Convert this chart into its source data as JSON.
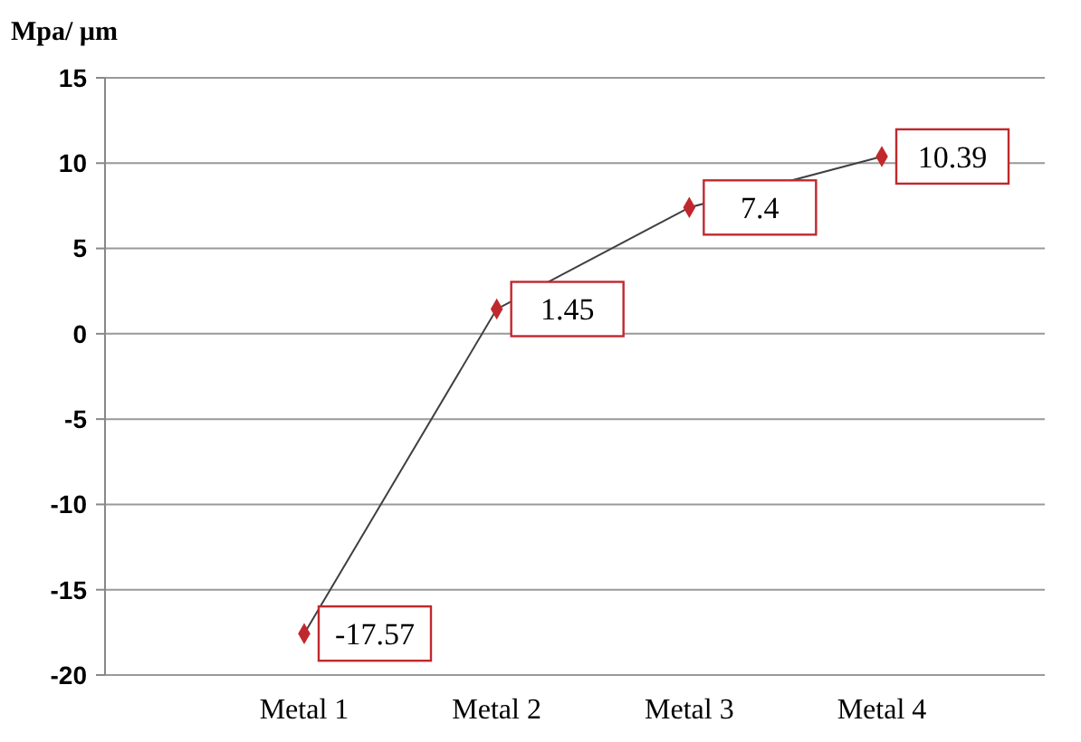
{
  "chart_data": {
    "type": "line",
    "ylabel": "Mpa/ µm",
    "categories": [
      "Metal 1",
      "Metal 2",
      "Metal 3",
      "Metal 4"
    ],
    "series": [
      {
        "color": "#c0282d",
        "values": [
          -17.57,
          1.45,
          7.4,
          10.39
        ]
      }
    ],
    "ylim": [
      -20,
      15
    ],
    "yticks": [
      -20,
      -15,
      -10,
      -5,
      0,
      5,
      10,
      15
    ],
    "grid": "y",
    "marker": "diamond",
    "data_labels": true
  }
}
